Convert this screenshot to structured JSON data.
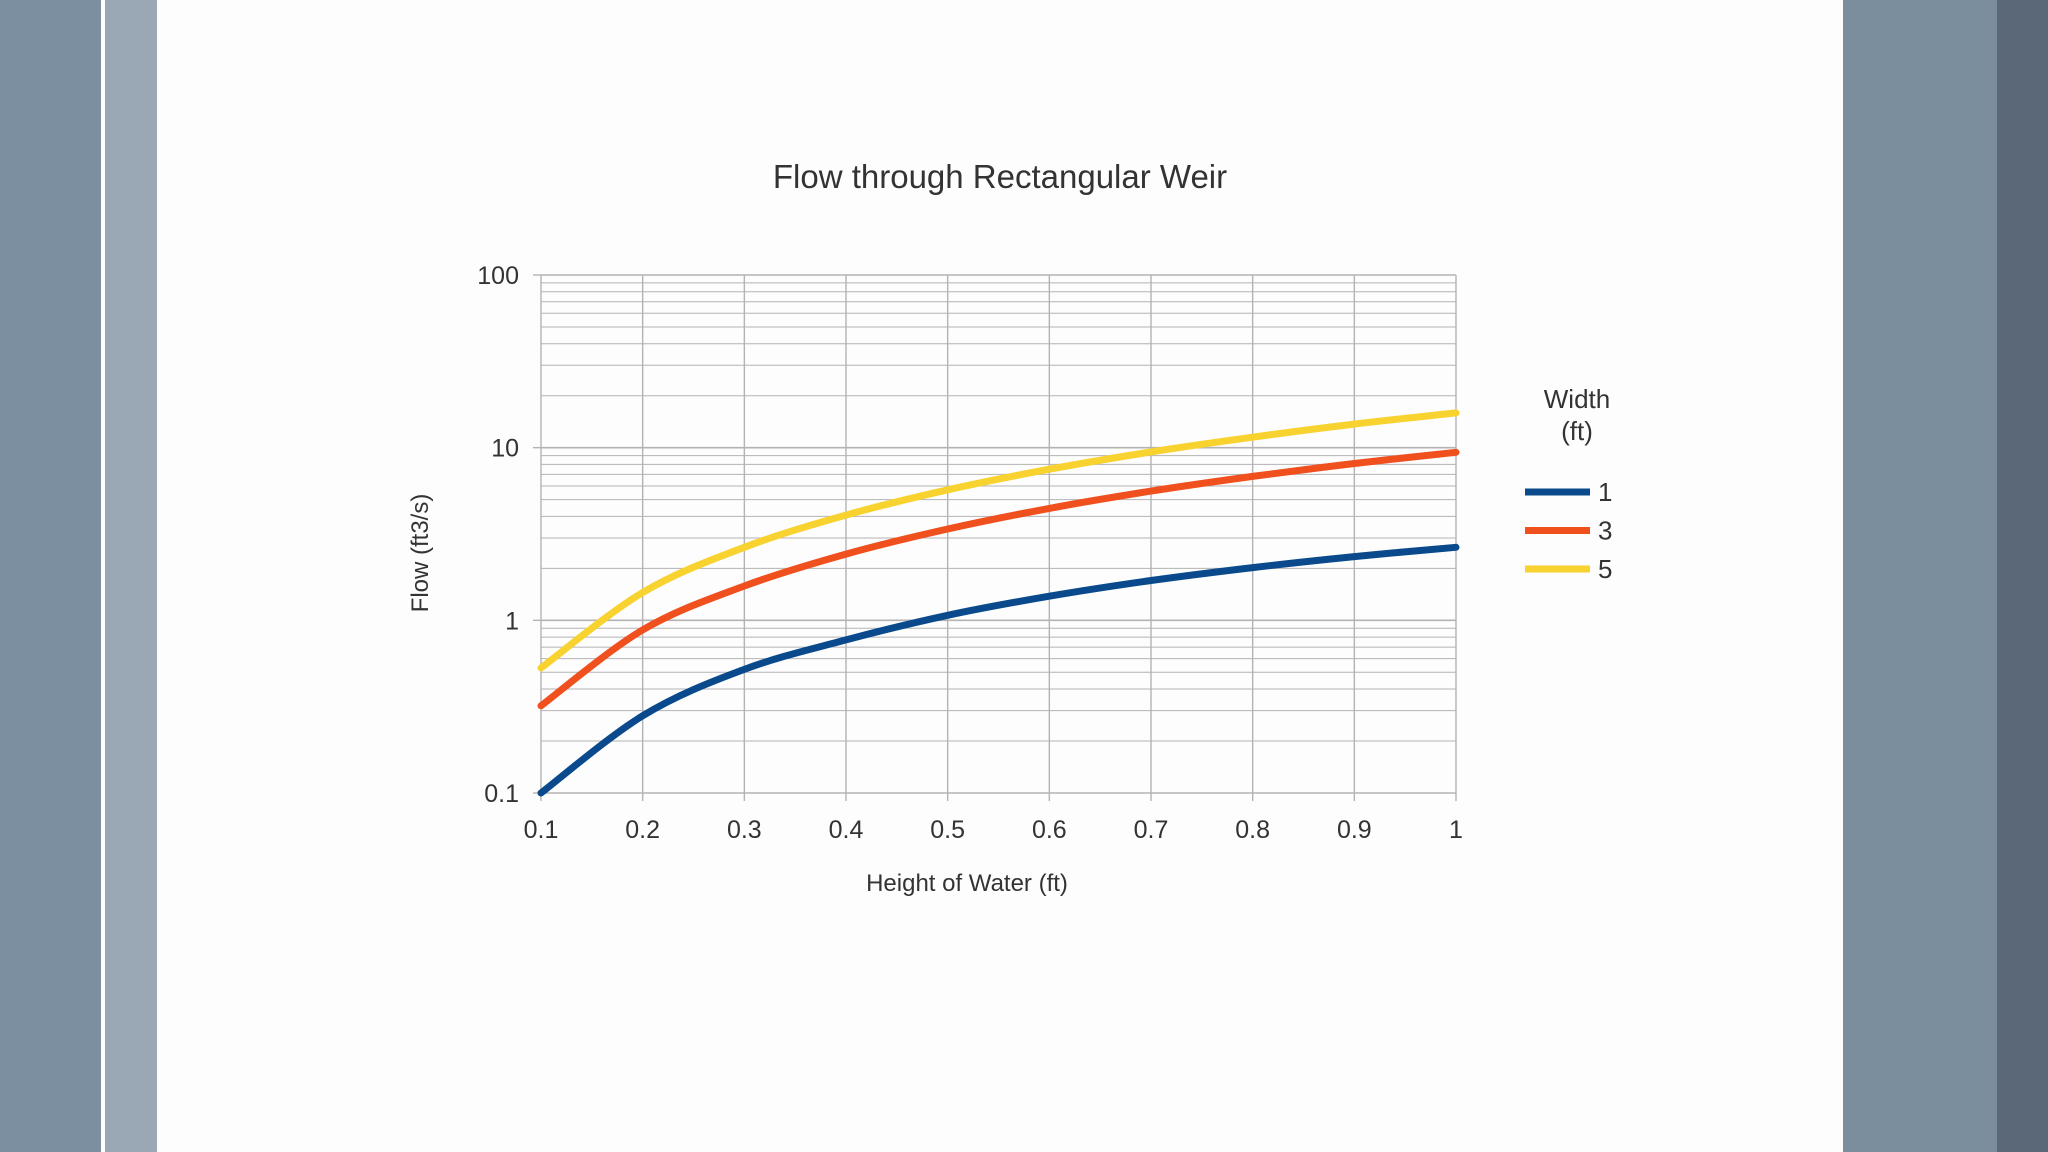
{
  "colors": {
    "series_1": "#0a4a8c",
    "series_3": "#f0501e",
    "series_5": "#f8d22e",
    "grid": "#b3b3b3",
    "text": "#333333"
  },
  "chart_data": {
    "type": "line",
    "title": "Flow through Rectangular Weir",
    "xlabel": "Height of Water (ft)",
    "ylabel": "Flow (ft3/s)",
    "xlim": [
      0.1,
      1
    ],
    "ylim": [
      0.1,
      100
    ],
    "yscale": "log",
    "grid": true,
    "legend_placement": "right",
    "legend_title": "Width (ft)",
    "x_ticks": [
      "0.1",
      "0.2",
      "0.3",
      "0.4",
      "0.5",
      "0.6",
      "0.7",
      "0.8",
      "0.9",
      "1"
    ],
    "y_ticks": [
      "0.1",
      "1",
      "10",
      "100"
    ],
    "x": [
      0.1,
      0.2,
      0.3,
      0.4,
      0.5,
      0.6,
      0.7,
      0.8,
      0.9,
      1.0
    ],
    "series": [
      {
        "name": "1",
        "values": [
          0.1,
          0.28,
          0.52,
          0.77,
          1.07,
          1.38,
          1.7,
          2.02,
          2.34,
          2.65
        ]
      },
      {
        "name": "3",
        "values": [
          0.32,
          0.88,
          1.58,
          2.42,
          3.38,
          4.45,
          5.6,
          6.82,
          8.1,
          9.4
        ]
      },
      {
        "name": "5",
        "values": [
          0.53,
          1.45,
          2.65,
          4.07,
          5.7,
          7.5,
          9.45,
          11.5,
          13.7,
          15.9
        ]
      }
    ]
  }
}
